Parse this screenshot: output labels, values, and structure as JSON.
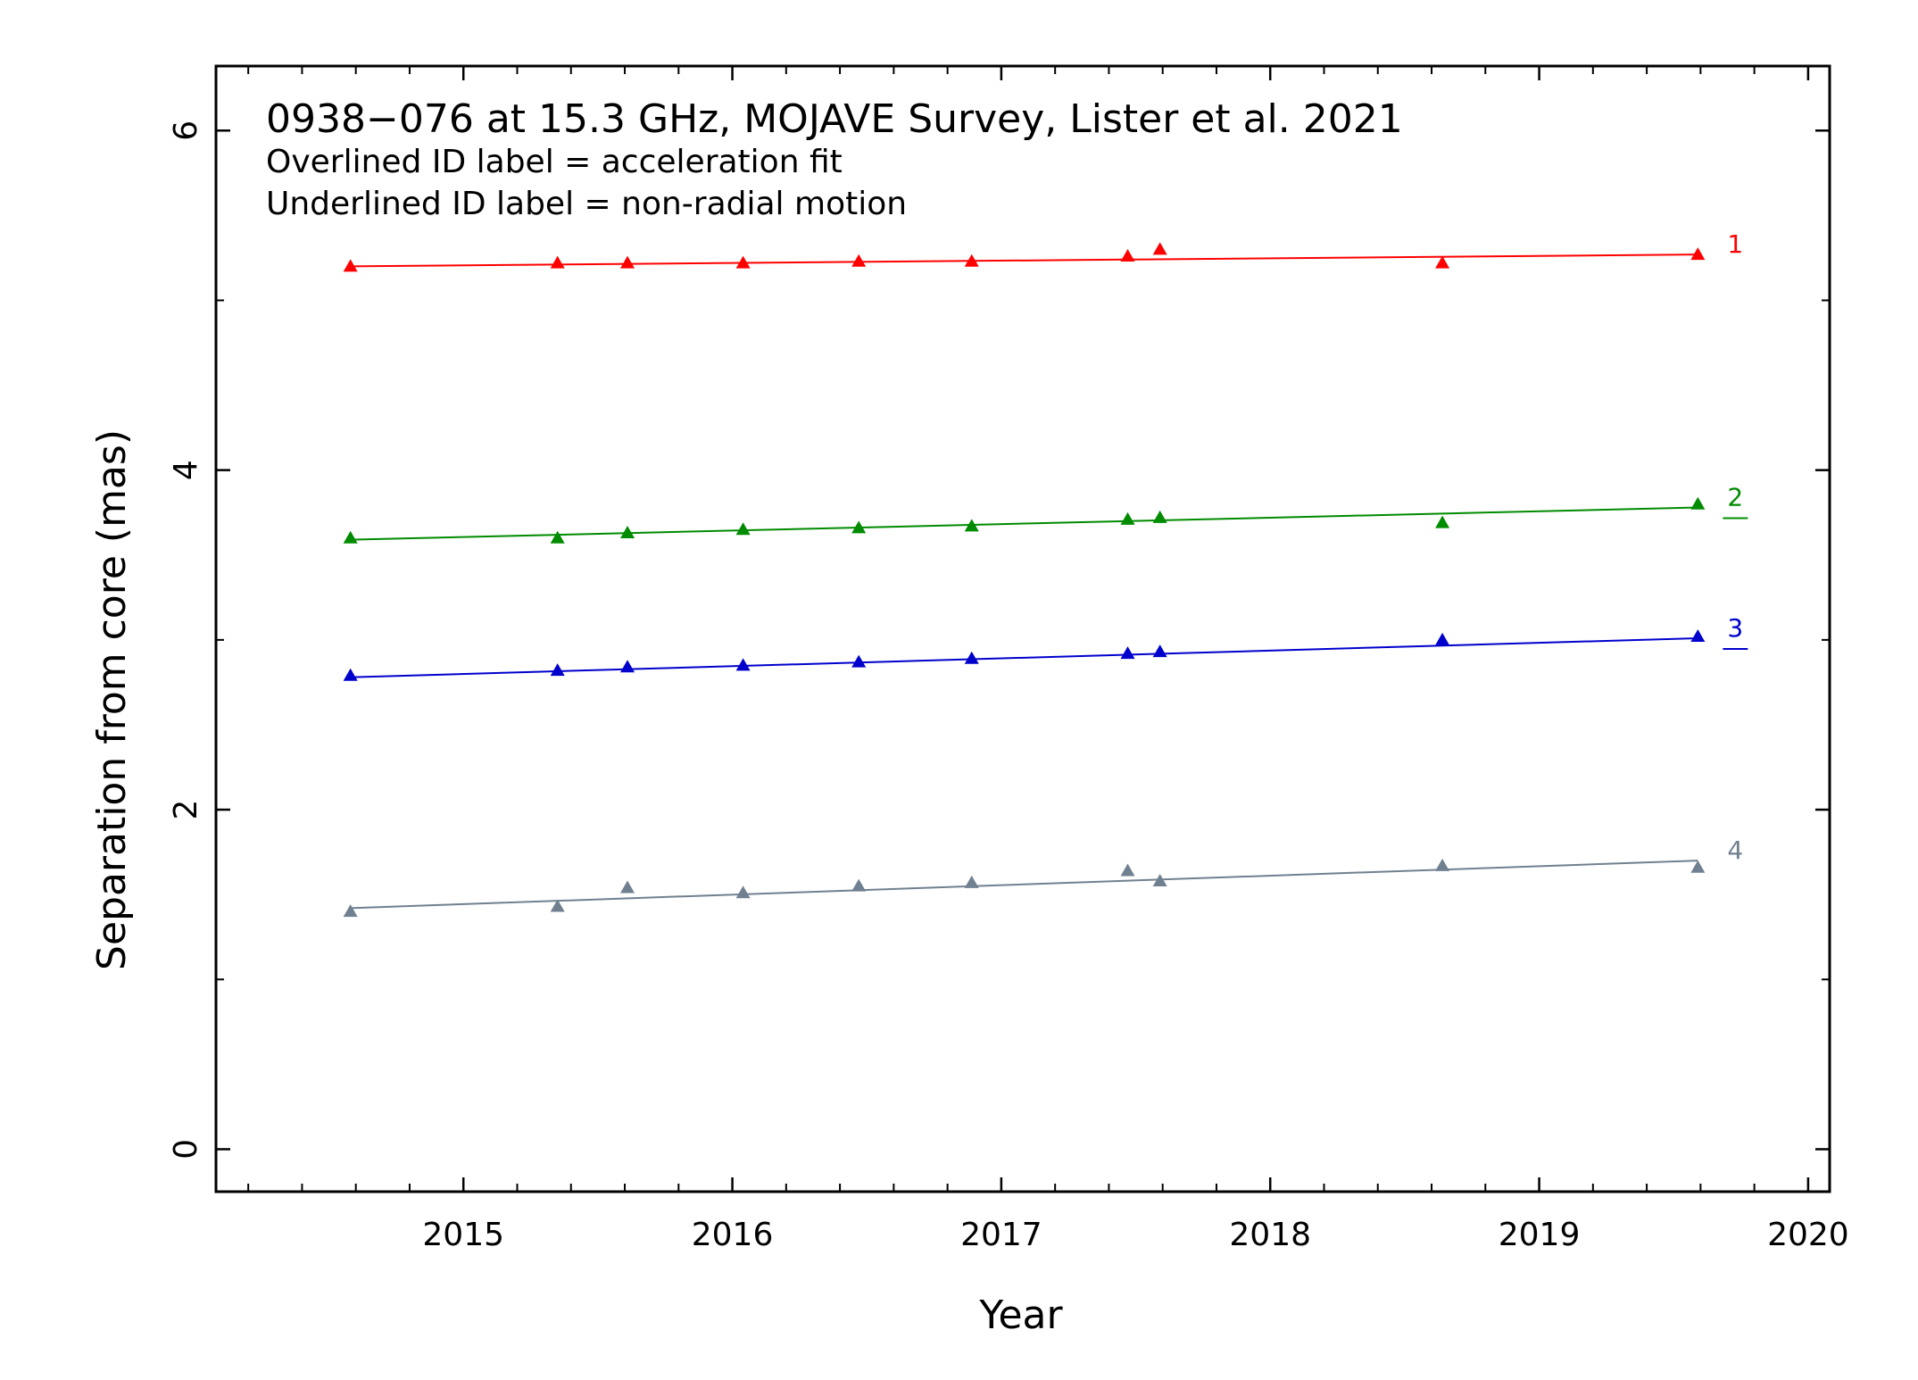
{
  "chart_data": {
    "type": "scatter",
    "title": "0938−076 at 15.3 GHz, MOJAVE Survey, Lister et al. 2021",
    "subtitles": [
      "Overlined ID label = acceleration fit",
      "Underlined ID label = non-radial motion"
    ],
    "xlabel": "Year",
    "ylabel": "Separation from core (mas)",
    "xlim": [
      2014.08,
      2020.08
    ],
    "ylim": [
      -0.25,
      6.38
    ],
    "xticks": [
      2015,
      2016,
      2017,
      2018,
      2019,
      2020
    ],
    "xtick_labels": [
      "2015",
      "2016",
      "2017",
      "2018",
      "2019",
      "2020"
    ],
    "x_minor_step": 0.2,
    "yticks": [
      0,
      2,
      4,
      6
    ],
    "ytick_labels": [
      "0",
      "2",
      "4",
      "6"
    ],
    "y_minor_step": 1,
    "grid": false,
    "epochs": [
      2014.58,
      2015.35,
      2015.61,
      2016.04,
      2016.47,
      2016.89,
      2017.47,
      2017.59,
      2018.64,
      2019.59
    ],
    "series": [
      {
        "name": "1",
        "color": "#ff0000",
        "marker": "triangle",
        "underlined": false,
        "y": [
          5.2,
          5.22,
          5.22,
          5.22,
          5.23,
          5.23,
          5.26,
          5.3,
          5.22,
          5.27
        ],
        "fit": [
          [
            2014.58,
            5.2
          ],
          [
            2019.59,
            5.27
          ]
        ]
      },
      {
        "name": "2",
        "color": "#008b00",
        "marker": "triangle",
        "underlined": true,
        "y": [
          3.6,
          3.6,
          3.63,
          3.65,
          3.66,
          3.67,
          3.71,
          3.72,
          3.69,
          3.8
        ],
        "fit": [
          [
            2014.58,
            3.59
          ],
          [
            2019.59,
            3.78
          ]
        ]
      },
      {
        "name": "3",
        "color": "#0000cd",
        "marker": "triangle",
        "underlined": true,
        "y": [
          2.79,
          2.82,
          2.84,
          2.85,
          2.87,
          2.89,
          2.92,
          2.93,
          3.0,
          3.02
        ],
        "fit": [
          [
            2014.58,
            2.78
          ],
          [
            2019.59,
            3.01
          ]
        ]
      },
      {
        "name": "4",
        "color": "#708090",
        "marker": "triangle",
        "underlined": false,
        "y": [
          1.4,
          1.43,
          1.54,
          1.51,
          1.55,
          1.57,
          1.64,
          1.58,
          1.67,
          1.66
        ],
        "fit": [
          [
            2014.58,
            1.42
          ],
          [
            2019.59,
            1.7
          ]
        ]
      }
    ]
  }
}
